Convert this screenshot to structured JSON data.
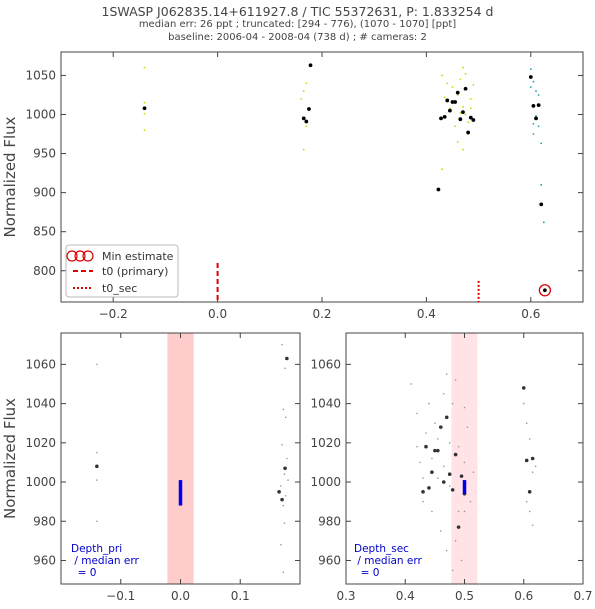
{
  "header": {
    "title": "1SWASP J062835.14+611927.8 / TIC 55372631, P: 1.833254 d",
    "subtitle1": "median err: 26 ppt ; truncated: [294 - 776), (1070 - 1070] [ppt]",
    "subtitle2": "baseline: 2006-04 - 2008-04 (738 d)  ;  # cameras: 2"
  },
  "colors": {
    "axis": "#444444",
    "primary_marker": "#dd0000",
    "min_circle": "#dd0000",
    "depth_bar": "#0000ee",
    "depth_text": "#0000cc",
    "pri_band": "#ff9999",
    "sec_band": "#ffc8d0",
    "binned": "#000000",
    "raw_cam1": "#c8d800",
    "raw_cam2": "#20a0b0"
  },
  "chart_data": [
    {
      "id": "main",
      "type": "scatter",
      "xlabel": "",
      "ylabel": "Normalized Flux",
      "xlim": [
        -0.3,
        0.7
      ],
      "ylim": [
        760,
        1080
      ],
      "xticks": [
        -0.2,
        0.0,
        0.2,
        0.4,
        0.6
      ],
      "xticklabels": [
        "−0.2",
        "0.0",
        "0.2",
        "0.4",
        "0.6"
      ],
      "yticks": [
        800,
        850,
        900,
        950,
        1000,
        1050
      ],
      "yticklabels": [
        "800",
        "850",
        "900",
        "950",
        "1000",
        "1050"
      ],
      "legend": {
        "placement": "lower-left",
        "entries": [
          "Min estimate",
          "t0 (primary)",
          "t0_sec"
        ]
      },
      "t0_primary_x": 0.0,
      "t0_secondary_x": 0.5,
      "min_estimate": [
        0.627,
        775
      ],
      "binned_points": [
        [
          -0.14,
          1008
        ],
        [
          0.165,
          995
        ],
        [
          0.17,
          991
        ],
        [
          0.175,
          1007
        ],
        [
          0.178,
          1063
        ],
        [
          0.423,
          904
        ],
        [
          0.428,
          995
        ],
        [
          0.435,
          997
        ],
        [
          0.44,
          1018
        ],
        [
          0.445,
          1005
        ],
        [
          0.45,
          1016
        ],
        [
          0.455,
          1016
        ],
        [
          0.46,
          1028
        ],
        [
          0.465,
          994
        ],
        [
          0.47,
          1003
        ],
        [
          0.475,
          1033
        ],
        [
          0.48,
          977
        ],
        [
          0.485,
          996
        ],
        [
          0.49,
          993
        ],
        [
          0.6,
          1048
        ],
        [
          0.605,
          1011
        ],
        [
          0.61,
          995
        ],
        [
          0.615,
          1012
        ],
        [
          0.62,
          885
        ]
      ],
      "raw_points_cam1": [
        [
          -0.14,
          1060
        ],
        [
          -0.14,
          1015
        ],
        [
          -0.14,
          1001
        ],
        [
          -0.14,
          980
        ],
        [
          0.16,
          1020
        ],
        [
          0.165,
          1030
        ],
        [
          0.17,
          1040
        ],
        [
          0.165,
          955
        ],
        [
          0.17,
          985
        ],
        [
          0.43,
          1050
        ],
        [
          0.44,
          1040
        ],
        [
          0.45,
          1035
        ],
        [
          0.46,
          1025
        ],
        [
          0.465,
          1045
        ],
        [
          0.47,
          1010
        ],
        [
          0.475,
          1000
        ],
        [
          0.48,
          990
        ],
        [
          0.485,
          1020
        ],
        [
          0.49,
          1038
        ],
        [
          0.455,
          985
        ],
        [
          0.46,
          965
        ],
        [
          0.47,
          955
        ],
        [
          0.48,
          975
        ],
        [
          0.445,
          1008
        ],
        [
          0.435,
          1022
        ],
        [
          0.475,
          1052
        ],
        [
          0.465,
          1002
        ],
        [
          0.485,
          1008
        ],
        [
          0.43,
          930
        ],
        [
          0.47,
          1060
        ]
      ],
      "raw_points_cam2": [
        [
          0.6,
          1058
        ],
        [
          0.605,
          1042
        ],
        [
          0.61,
          1030
        ],
        [
          0.615,
          1025
        ],
        [
          0.61,
          998
        ],
        [
          0.605,
          988
        ],
        [
          0.615,
          985
        ],
        [
          0.62,
          963
        ],
        [
          0.605,
          975
        ],
        [
          0.62,
          910
        ],
        [
          0.625,
          862
        ],
        [
          0.6,
          1035
        ]
      ]
    },
    {
      "id": "primary-zoom",
      "type": "scatter",
      "xlabel": "",
      "ylabel": "Normalized Flux",
      "xlim": [
        -0.2,
        0.2
      ],
      "ylim": [
        948,
        1076
      ],
      "xticks": [
        -0.1,
        0.0,
        0.1
      ],
      "xticklabels": [
        "−0.1",
        "0.0",
        "0.1"
      ],
      "yticks": [
        960,
        980,
        1000,
        1020,
        1040,
        1060
      ],
      "yticklabels": [
        "960",
        "980",
        "1000",
        "1020",
        "1040",
        "1060"
      ],
      "band": [
        -0.022,
        0.022
      ],
      "depth_bar": {
        "x": 0.0,
        "y_from": 988,
        "y_to": 1001
      },
      "annotation": [
        "Depth_pri",
        " / median err",
        "  = 0"
      ],
      "binned_points": [
        [
          -0.14,
          1008
        ],
        [
          0.165,
          995
        ],
        [
          0.17,
          991
        ],
        [
          0.175,
          1007
        ],
        [
          0.178,
          1063
        ]
      ],
      "raw_points": [
        [
          -0.14,
          1060
        ],
        [
          -0.14,
          1015
        ],
        [
          -0.14,
          1001
        ],
        [
          -0.14,
          980
        ],
        [
          0.17,
          1070
        ],
        [
          0.175,
          1058
        ],
        [
          0.172,
          1037
        ],
        [
          0.176,
          1033
        ],
        [
          0.17,
          1019
        ],
        [
          0.178,
          1012
        ],
        [
          0.174,
          1004
        ],
        [
          0.168,
          998
        ],
        [
          0.176,
          993
        ],
        [
          0.172,
          988
        ],
        [
          0.174,
          979
        ],
        [
          0.168,
          968
        ],
        [
          0.172,
          954
        ],
        [
          0.18,
          1001
        ]
      ]
    },
    {
      "id": "secondary-zoom",
      "type": "scatter",
      "xlabel": "",
      "ylabel": "",
      "xlim": [
        0.3,
        0.7
      ],
      "ylim": [
        948,
        1076
      ],
      "xticks": [
        0.3,
        0.4,
        0.5,
        0.6,
        0.7
      ],
      "xticklabels": [
        "0.3",
        "0.4",
        "0.5",
        "0.6",
        "0.7"
      ],
      "yticks": [
        960,
        980,
        1000,
        1020,
        1040,
        1060
      ],
      "yticklabels": [
        "960",
        "980",
        "1000",
        "1020",
        "1040",
        "1060"
      ],
      "band": [
        0.478,
        0.522
      ],
      "depth_bar": {
        "x": 0.5,
        "y_from": 994,
        "y_to": 1001
      },
      "annotation": [
        "Depth_sec",
        " / median err",
        "  = 0"
      ],
      "binned_points": [
        [
          0.43,
          995
        ],
        [
          0.435,
          1018
        ],
        [
          0.44,
          997
        ],
        [
          0.445,
          1005
        ],
        [
          0.45,
          1016
        ],
        [
          0.455,
          1016
        ],
        [
          0.46,
          1028
        ],
        [
          0.465,
          1000
        ],
        [
          0.47,
          1033
        ],
        [
          0.475,
          1004
        ],
        [
          0.48,
          996
        ],
        [
          0.485,
          1014
        ],
        [
          0.49,
          977
        ],
        [
          0.495,
          1003
        ],
        [
          0.5,
          994
        ],
        [
          0.6,
          1048
        ],
        [
          0.605,
          1011
        ],
        [
          0.61,
          995
        ],
        [
          0.615,
          1012
        ]
      ],
      "raw_points": [
        [
          0.41,
          1050
        ],
        [
          0.42,
          1035
        ],
        [
          0.425,
          1010
        ],
        [
          0.43,
          990
        ],
        [
          0.435,
          1025
        ],
        [
          0.44,
          1040
        ],
        [
          0.445,
          985
        ],
        [
          0.45,
          1030
        ],
        [
          0.455,
          1002
        ],
        [
          0.46,
          975
        ],
        [
          0.465,
          1045
        ],
        [
          0.47,
          965
        ],
        [
          0.475,
          1020
        ],
        [
          0.48,
          1040
        ],
        [
          0.485,
          1052
        ],
        [
          0.49,
          985
        ],
        [
          0.495,
          960
        ],
        [
          0.5,
          1010
        ],
        [
          0.505,
          1028
        ],
        [
          0.51,
          990
        ],
        [
          0.515,
          1005
        ],
        [
          0.47,
          1055
        ],
        [
          0.485,
          970
        ],
        [
          0.49,
          1018
        ],
        [
          0.5,
          1038
        ],
        [
          0.48,
          955
        ],
        [
          0.5,
          985
        ],
        [
          0.475,
          998
        ],
        [
          0.465,
          1008
        ],
        [
          0.455,
          1022
        ],
        [
          0.445,
          1012
        ],
        [
          0.43,
          1002
        ],
        [
          0.42,
          1018
        ],
        [
          0.6,
          1040
        ],
        [
          0.605,
          1030
        ],
        [
          0.61,
          1022
        ],
        [
          0.615,
          1005
        ],
        [
          0.605,
          990
        ],
        [
          0.61,
          985
        ],
        [
          0.615,
          978
        ],
        [
          0.62,
          1008
        ]
      ]
    }
  ]
}
